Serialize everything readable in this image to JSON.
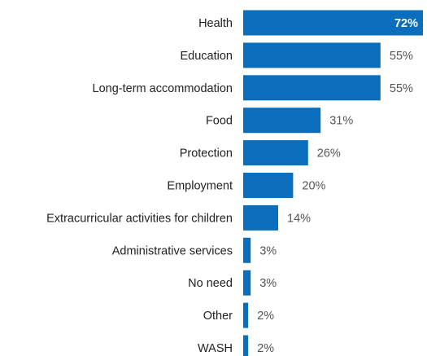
{
  "chart_data": {
    "type": "bar",
    "orientation": "horizontal",
    "title": "",
    "xlabel": "",
    "ylabel": "",
    "xlim": [
      0,
      100
    ],
    "grid": false,
    "legend": "none",
    "bar_color": "#0a6ebd",
    "value_suffix": "%",
    "categories": [
      "Health",
      "Education",
      "Long-term accommodation",
      "Food",
      "Protection",
      "Employment",
      "Extracurricular activities for children",
      "Administrative services",
      "No need",
      "Other",
      "WASH"
    ],
    "values": [
      72,
      55,
      55,
      31,
      26,
      20,
      14,
      3,
      3,
      2,
      2
    ],
    "value_labels": [
      "72%",
      "55%",
      "55%",
      "31%",
      "26%",
      "20%",
      "14%",
      "3%",
      "3%",
      "2%",
      "2%"
    ]
  }
}
